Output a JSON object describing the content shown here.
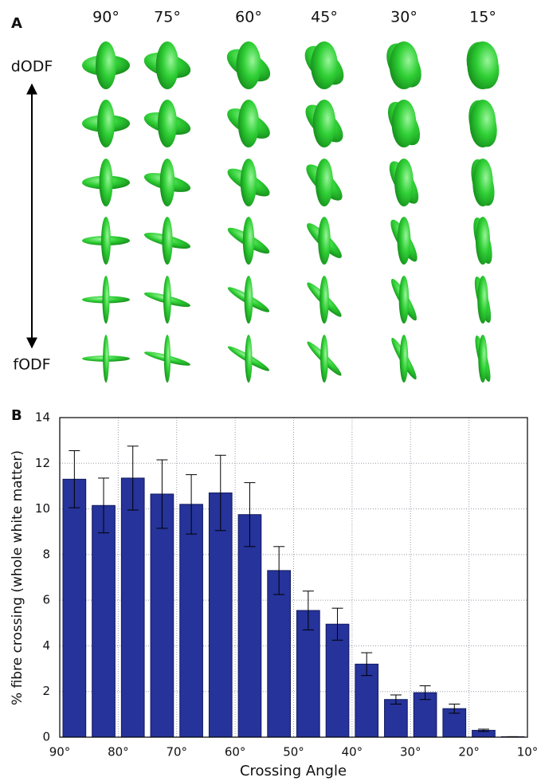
{
  "panel_a": {
    "label": "A",
    "columns": [
      "90°",
      "75°",
      "60°",
      "45°",
      "30°",
      "15°"
    ],
    "top_label": "dODF",
    "bottom_label": "fODF"
  },
  "chart_data": {
    "type": "histogram",
    "panel_label": "B",
    "xlabel": "Crossing Angle",
    "ylabel": "% fibre crossing (whole white matter)",
    "bins": [
      90,
      85,
      80,
      75,
      70,
      65,
      60,
      55,
      50,
      45,
      40,
      35,
      30,
      25,
      20,
      15,
      10
    ],
    "values": [
      11.3,
      10.15,
      11.35,
      10.65,
      10.2,
      10.7,
      9.75,
      7.3,
      5.55,
      4.95,
      3.2,
      1.65,
      1.95,
      1.25,
      0.3,
      0.02
    ],
    "errors": [
      1.25,
      1.2,
      1.4,
      1.5,
      1.3,
      1.65,
      1.4,
      1.05,
      0.85,
      0.7,
      0.5,
      0.2,
      0.3,
      0.2,
      0.05,
      0
    ],
    "color": "#25339a",
    "xlim": [
      90,
      10
    ],
    "ylim": [
      0,
      14
    ],
    "xticks": [
      {
        "value": 90,
        "label": "90°"
      },
      {
        "value": 80,
        "label": "80°"
      },
      {
        "value": 70,
        "label": "70°"
      },
      {
        "value": 60,
        "label": "60°"
      },
      {
        "value": 50,
        "label": "50°"
      },
      {
        "value": 40,
        "label": "40°"
      },
      {
        "value": 30,
        "label": "30°"
      },
      {
        "value": 20,
        "label": "20°"
      },
      {
        "value": 10,
        "label": "10°"
      }
    ],
    "yticks": [
      0,
      2,
      4,
      6,
      8,
      10,
      12,
      14
    ],
    "grid": true
  }
}
